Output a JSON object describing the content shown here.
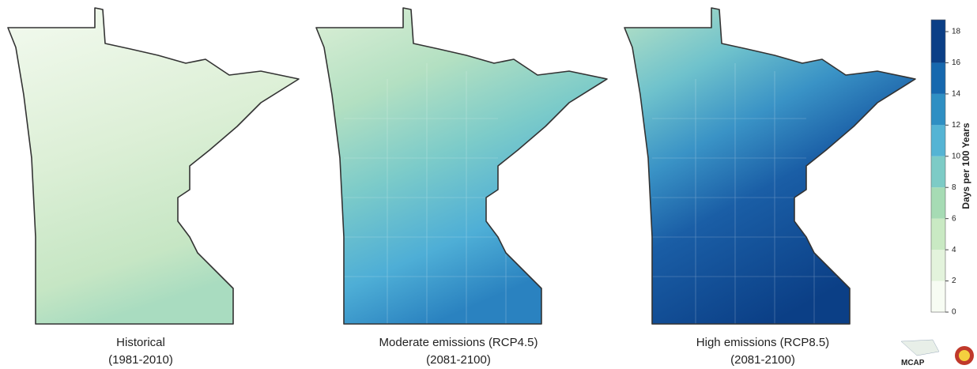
{
  "maps": [
    {
      "title": "Historical",
      "period": "(1981-2010)"
    },
    {
      "title": "Moderate emissions (RCP4.5)",
      "period": "(2081-2100)"
    },
    {
      "title": "High emissions (RCP8.5)",
      "period": "(2081-2100)"
    }
  ],
  "legend": {
    "label": "Days per 100 Years",
    "ticks": [
      0,
      2,
      4,
      6,
      8,
      10,
      12,
      14,
      16,
      18
    ],
    "colors": [
      "#f7fcf3",
      "#e3f3dc",
      "#c9e9c3",
      "#a6dbb4",
      "#7dcbc6",
      "#55b4d4",
      "#2f8fc3",
      "#1668ae",
      "#0b3f86"
    ]
  },
  "logo": {
    "text": "MCAP"
  }
}
